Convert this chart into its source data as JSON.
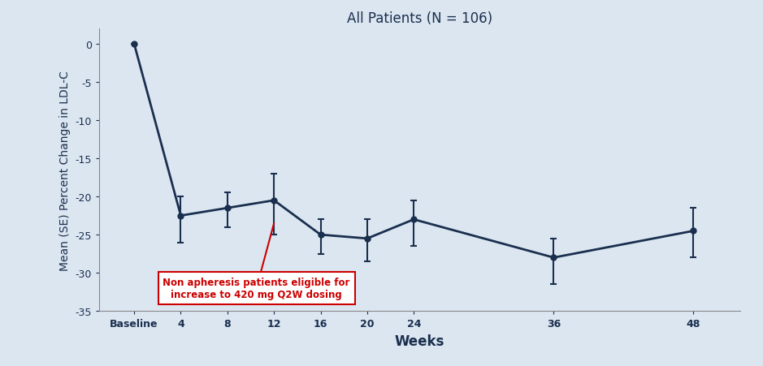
{
  "title": "All Patients (N = 106)",
  "xlabel": "Weeks",
  "ylabel": "Mean (SE) Percent Change in LDL-C",
  "background_color": "#dce6f1",
  "line_color": "#1a2f4e",
  "x_labels": [
    "Baseline",
    "4",
    "8",
    "12",
    "16",
    "20",
    "24",
    "36",
    "48"
  ],
  "x_positions": [
    0,
    4,
    8,
    12,
    16,
    20,
    24,
    36,
    48
  ],
  "y_values": [
    0.0,
    -22.5,
    -21.5,
    -20.5,
    -25.0,
    -25.5,
    -23.0,
    -28.0,
    -24.5
  ],
  "y_err_lower": [
    0.0,
    3.5,
    2.5,
    4.5,
    2.5,
    3.0,
    3.5,
    3.5,
    3.5
  ],
  "y_err_upper": [
    0.0,
    2.5,
    2.0,
    3.5,
    2.0,
    2.5,
    2.5,
    2.5,
    3.0
  ],
  "ylim": [
    -35,
    2
  ],
  "yticks": [
    0,
    -5,
    -10,
    -15,
    -20,
    -25,
    -30,
    -35
  ],
  "annotation_text": "Non apheresis patients eligible for\nincrease to 420 mg Q2W dosing",
  "annotation_box_color": "#ffffff",
  "annotation_edge_color": "#cc0000",
  "annotation_text_color": "#cc0000",
  "arrow_color": "#cc0000",
  "title_fontsize": 12,
  "axis_label_fontsize": 10,
  "tick_fontsize": 9,
  "fig_width": 9.39,
  "fig_height": 4.52,
  "dpi": 100
}
